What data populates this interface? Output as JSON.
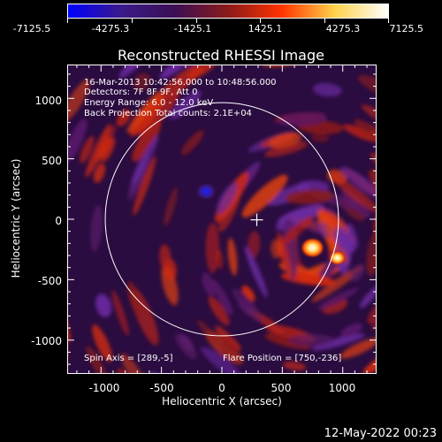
{
  "colorbar": {
    "labels": [
      "-7125.5",
      "-4275.3",
      "-1425.1",
      "1425.1",
      "4275.3",
      "7125.5"
    ],
    "colormap": [
      "#0000ff",
      "#3a1a8a",
      "#3b0f55",
      "#8b1a1a",
      "#ff3300",
      "#ffd24a",
      "#ffffff"
    ]
  },
  "plot": {
    "title": "Reconstructed RHESSI Image",
    "xlabel": "Heliocentric X (arcsec)",
    "ylabel": "Heliocentric Y (arcsec)",
    "xlim": [
      -1280,
      1280
    ],
    "ylim": [
      -1280,
      1280
    ],
    "xticks": [
      "-1000",
      "-500",
      "0",
      "500",
      "1000"
    ],
    "yticks": [
      "1000",
      "500",
      "0",
      "-500",
      "-1000"
    ],
    "info_lines": [
      "16-Mar-2013 10:42:56.000 to 10:48:56.000",
      "Detectors: 7F 8F 9F, Att 0",
      "Energy Range: 6.0 - 12.0 keV",
      "Back Projection     Total counts: 2.1E+04"
    ],
    "spin_axis": "Spin Axis = [289,-5]",
    "flare_position": "Flare Position = [750,-236]",
    "solar_limb_radius_arcsec": 965,
    "spin_axis_xy": [
      289,
      -5
    ],
    "sources": [
      {
        "x": 750,
        "y": -236,
        "brightness": "peak"
      },
      {
        "x": 955,
        "y": -320,
        "brightness": "high"
      },
      {
        "x": -130,
        "y": 230,
        "brightness": "negative"
      }
    ]
  },
  "timestamp": "12-May-2022 00:23"
}
